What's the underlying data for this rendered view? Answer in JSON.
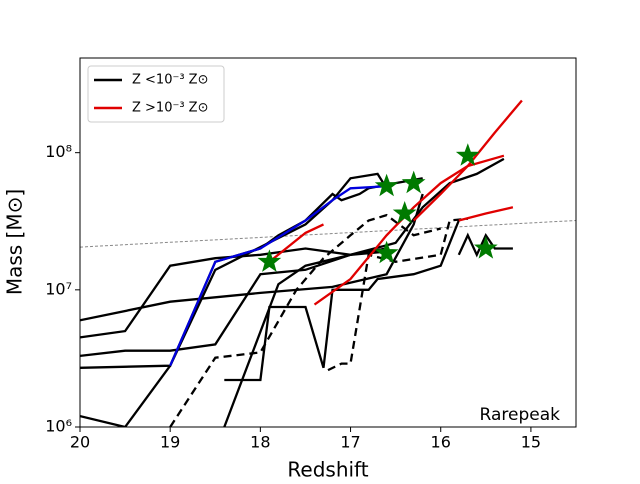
{
  "chart_data": {
    "type": "line",
    "x_label": "Redshift",
    "y_label": "Mass [M⊙]",
    "annotation": "Rarepeak",
    "log_y": true,
    "xlim": [
      20,
      14.5
    ],
    "ylim": [
      1000000,
      490000000
    ],
    "xticks": [
      20,
      19,
      18,
      17,
      16,
      15
    ],
    "yticks": [
      {
        "value": 1000000,
        "label": "10⁶"
      },
      {
        "value": 10000000,
        "label": "10⁷"
      },
      {
        "value": 100000000,
        "label": "10⁸"
      }
    ],
    "legend_position": "upper left",
    "legend": [
      {
        "name": "Z <10⁻³ Z⊙",
        "color": "#000000"
      },
      {
        "name": "Z >10⁻³ Z⊙",
        "color": "#e00000"
      }
    ],
    "series": [
      {
        "color": "#000000",
        "dash": false,
        "x": [
          20,
          19,
          18,
          17.2,
          16.6,
          16.3,
          16.2
        ],
        "values": [
          6000000,
          8200000,
          9500000,
          10500000,
          13000000,
          30000000,
          50000000
        ]
      },
      {
        "color": "#000000",
        "dash": false,
        "x": [
          20,
          19.5,
          19,
          18.5,
          18,
          17.5,
          17,
          16.6
        ],
        "values": [
          4500000,
          5000000,
          15000000,
          17000000,
          18000000,
          20000000,
          18000000,
          19000000
        ]
      },
      {
        "color": "#000000",
        "dash": false,
        "x": [
          20,
          19.5,
          19,
          18.5,
          18,
          17.5,
          17,
          16.6
        ],
        "values": [
          3300000,
          3600000,
          3600000,
          4000000,
          13000000,
          14000000,
          18000000,
          20000000
        ]
      },
      {
        "color": "#000000",
        "dash": false,
        "x": [
          20,
          19,
          18.5,
          17.5,
          17.2,
          17,
          16.7,
          16.6
        ],
        "values": [
          2700000,
          2800000,
          14000000,
          30000000,
          45000000,
          65000000,
          70000000,
          55000000
        ]
      },
      {
        "color": "#000000",
        "dash": false,
        "x": [
          20,
          19.5,
          19,
          18.5,
          18,
          17.8,
          17.5,
          17.2,
          17.1,
          16.9,
          16.8,
          16.5,
          16.2
        ],
        "values": [
          1200000,
          1000000,
          2800000,
          16000000,
          20000000,
          25000000,
          32000000,
          50000000,
          45000000,
          50000000,
          55000000,
          60000000,
          65000000
        ]
      },
      {
        "color": "#000000",
        "dash": false,
        "x": [
          18.4,
          17.8,
          17.5,
          17,
          16.5,
          16.2,
          15.9,
          15.6,
          15.3
        ],
        "values": [
          1000000,
          11000000,
          15000000,
          18000000,
          22000000,
          40000000,
          60000000,
          70000000,
          90000000
        ]
      },
      {
        "color": "#000000",
        "dash": false,
        "x": [
          18.4,
          18,
          17.9,
          17.5,
          17.3,
          17.2,
          16.8,
          16.7,
          16.3,
          16,
          15.8
        ],
        "values": [
          2200000,
          2200000,
          7500000,
          7500000,
          2700000,
          10000000,
          10000000,
          12000000,
          13000000,
          15000000,
          32000000
        ]
      },
      {
        "color": "#000000",
        "dash": false,
        "x": [
          15.8,
          15.7,
          15.6,
          15.5,
          15.4,
          15.2
        ],
        "values": [
          18000000,
          25000000,
          18000000,
          25000000,
          20000000,
          20000000
        ]
      },
      {
        "color": "#000000",
        "dash": true,
        "x": [
          19,
          18.5,
          18,
          17.6,
          17.3,
          17,
          16.8,
          16.6,
          16.3,
          16
        ],
        "values": [
          1000000,
          3200000,
          3500000,
          10000000,
          17000000,
          25000000,
          32000000,
          35000000,
          25000000,
          28000000
        ]
      },
      {
        "color": "#000000",
        "dash": true,
        "x": [
          17.25,
          17.1,
          17,
          16.8,
          16.5,
          16,
          15.9,
          15.7
        ],
        "values": [
          2600000,
          2900000,
          2900000,
          18000000,
          16000000,
          18000000,
          32000000,
          33000000
        ]
      },
      {
        "color": "#0000dd",
        "dash": false,
        "x": [
          19,
          18.5,
          18,
          17.5,
          17.2,
          17,
          16.6
        ],
        "values": [
          2800000,
          16000000,
          20000000,
          32000000,
          45000000,
          55000000,
          57000000
        ]
      },
      {
        "color": "#e00000",
        "dash": false,
        "x": [
          17.9,
          17.5,
          17.3
        ],
        "values": [
          16000000,
          26000000,
          30000000
        ]
      },
      {
        "color": "#e00000",
        "dash": false,
        "x": [
          17.4,
          17,
          16.6,
          16.3,
          16,
          15.7,
          15.4,
          15.1
        ],
        "values": [
          7800000,
          12000000,
          25000000,
          40000000,
          60000000,
          80000000,
          140000000,
          240000000
        ]
      },
      {
        "color": "#e00000",
        "dash": false,
        "x": [
          16.3,
          16,
          15.7,
          15.3
        ],
        "values": [
          32000000,
          50000000,
          80000000,
          95000000
        ]
      },
      {
        "color": "#e00000",
        "dash": false,
        "x": [
          15.8,
          15.5,
          15.2
        ],
        "values": [
          32000000,
          36000000,
          40000000
        ]
      }
    ],
    "reference_line": {
      "color": "#888888",
      "x": [
        20,
        14.5
      ],
      "values": [
        20500000,
        32000000
      ]
    },
    "markers": {
      "color": "#007a00",
      "x": [
        17.9,
        16.6,
        16.3,
        16.4,
        15.7,
        16.6,
        15.5
      ],
      "values": [
        16000000,
        57000000,
        60000000,
        36000000,
        95000000,
        18500000,
        20000000
      ]
    }
  }
}
